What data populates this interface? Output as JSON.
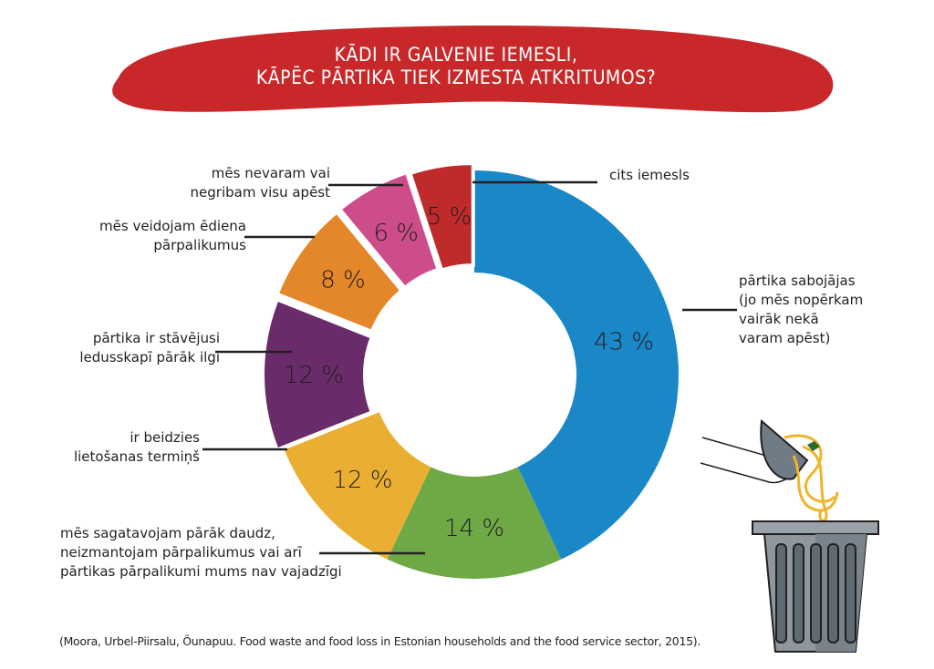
{
  "title": {
    "line1": "KĀDI IR GALVENIE IEMESLI,",
    "line2": "KĀPĒC PĀRTIKA TIEK IZMESTA ATKRITUMOS?"
  },
  "source": "(Moora, Urbel-Piirsalu, Õunapuu. Food waste and food loss in Estonian households and the food service sector, 2015).",
  "illustration": {
    "icon": "hand-pouring-food-into-trash-can-icon"
  },
  "colors": {
    "title_banner": "#c8282a"
  },
  "chart_data": {
    "type": "pie",
    "subtype": "donut",
    "title": "KĀDI IR GALVENIE IEMESLI, KĀPĒC PĀRTIKA TIEK IZMESTA ATKRITUMOS?",
    "unit": "%",
    "slices": [
      {
        "value": 43,
        "display": "43 %",
        "label": [
          "pārtika sabojājas",
          "(jo mēs nopērkam",
          "vairāk nekā",
          "varam apēst)"
        ],
        "color": "#1a88c7"
      },
      {
        "value": 14,
        "display": "14 %",
        "label": [
          "mēs sagatavojam pārāk daudz,",
          "neizmantojam pārpalikumus vai arī",
          "pārtikas pārpalikumi mums nav vajadzīgi"
        ],
        "color": "#6ea946"
      },
      {
        "value": 12,
        "display": "12 %",
        "label": [
          "ir beidzies",
          "lietošanas termiņš"
        ],
        "color": "#eaaf32"
      },
      {
        "value": 12,
        "display": "12 %",
        "label": [
          "pārtika ir stāvējusi",
          "ledusskapī pārāk ilgi"
        ],
        "color": "#6a2b6a"
      },
      {
        "value": 8,
        "display": "8 %",
        "label": [
          "mēs veidojam ēdiena",
          "pārpalikumus"
        ],
        "color": "#e4862a"
      },
      {
        "value": 6,
        "display": "6 %",
        "label": [
          "mēs nevaram vai",
          "negribam visu apēst"
        ],
        "color": "#cd4d8a"
      },
      {
        "value": 5,
        "display": "5 %",
        "label": [
          "cits iemesls"
        ],
        "color": "#bf2b2b"
      }
    ]
  }
}
